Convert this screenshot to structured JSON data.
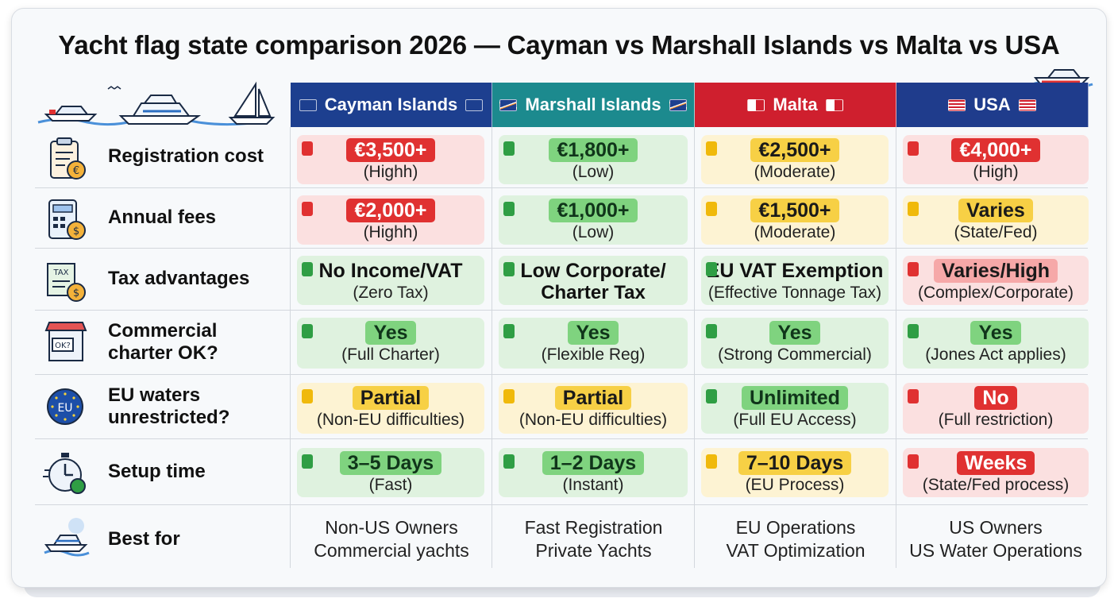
{
  "title": "Yacht flag state comparison 2026 — Cayman vs Marshall Islands vs Malta vs USA",
  "colors": {
    "red": "#e03131",
    "green": "#2f9e44",
    "yellow": "#f0b90b",
    "cayman": "#1d3f8f",
    "marshall": "#1c8a8e",
    "malta": "#cf1f2e",
    "usa": "#1f3c8c"
  },
  "columns": [
    {
      "label": "Cayman Islands",
      "color": "#1d3f8f"
    },
    {
      "label": "Marshall Islands",
      "color": "#1c8a8e"
    },
    {
      "label": "Malta",
      "color": "#cf1f2e"
    },
    {
      "label": "USA",
      "color": "#1f3c8c"
    }
  ],
  "rows": [
    {
      "label": "Registration cost",
      "icon": "clipboard-euro-icon",
      "cells": [
        {
          "main": "€3,500+",
          "sub": "(Highh)",
          "status": "red"
        },
        {
          "main": "€1,800+",
          "sub": "(Low)",
          "status": "green"
        },
        {
          "main": "€2,500+",
          "sub": "(Moderate)",
          "status": "yellow"
        },
        {
          "main": "€4,000+",
          "sub": "(High)",
          "status": "red"
        }
      ]
    },
    {
      "label": "Annual fees",
      "icon": "calculator-coin-icon",
      "cells": [
        {
          "main": "€2,000+",
          "sub": "(Highh)",
          "status": "red"
        },
        {
          "main": "€1,000+",
          "sub": "(Low)",
          "status": "green"
        },
        {
          "main": "€1,500+",
          "sub": "(Moderate)",
          "status": "yellow"
        },
        {
          "main": "Varies",
          "sub": "(State/Fed)",
          "status": "yellow"
        }
      ]
    },
    {
      "label": "Tax advantages",
      "icon": "tax-document-icon",
      "cells": [
        {
          "main": "No Income/VAT",
          "sub": "(Zero Tax)",
          "status": "green",
          "plain": true
        },
        {
          "main": "Low Corporate/",
          "sub": "Charter Tax",
          "status": "green",
          "plain": true,
          "subBold": true
        },
        {
          "main": "EU VAT Exemption",
          "sub": "(Effective Tonnage Tax)",
          "status": "green",
          "plain": true
        },
        {
          "main": "Varies/High",
          "sub": "(Complex/Corporate)",
          "status": "red"
        }
      ]
    },
    {
      "label": "Commercial charter OK?",
      "icon": "shop-ok-icon",
      "cells": [
        {
          "main": "Yes",
          "sub": "(Full Charter)",
          "status": "green"
        },
        {
          "main": "Yes",
          "sub": "(Flexible Reg)",
          "status": "green"
        },
        {
          "main": "Yes",
          "sub": "(Strong Commercial)",
          "status": "green"
        },
        {
          "main": "Yes",
          "sub": "(Jones Act applies)",
          "status": "green"
        }
      ]
    },
    {
      "label": "EU waters unrestricted?",
      "icon": "eu-globe-icon",
      "cells": [
        {
          "main": "Partial",
          "sub": "(Non-EU difficulties)",
          "status": "yellow"
        },
        {
          "main": "Partial",
          "sub": "(Non-EU difficulties)",
          "status": "yellow"
        },
        {
          "main": "Unlimited",
          "sub": "(Full EU Access)",
          "status": "green"
        },
        {
          "main": "No",
          "sub": "(Full restriction)",
          "status": "red"
        }
      ]
    },
    {
      "label": "Setup time",
      "icon": "stopwatch-icon",
      "cells": [
        {
          "main": "3–5 Days",
          "sub": "(Fast)",
          "status": "green"
        },
        {
          "main": "1–2 Days",
          "sub": "(Instant)",
          "status": "green"
        },
        {
          "main": "7–10 Days",
          "sub": "(EU Process)",
          "status": "yellow"
        },
        {
          "main": "Weeks",
          "sub": "(State/Fed process)",
          "status": "red"
        }
      ]
    }
  ],
  "best_for": {
    "label": "Best for",
    "icon": "yacht-icon",
    "values": [
      [
        "Non-US Owners",
        "Commercial yachts"
      ],
      [
        "Fast Registration",
        "Private Yachts"
      ],
      [
        "EU Operations",
        "VAT Optimization"
      ],
      [
        "US Owners",
        "US Water Operations"
      ]
    ]
  }
}
